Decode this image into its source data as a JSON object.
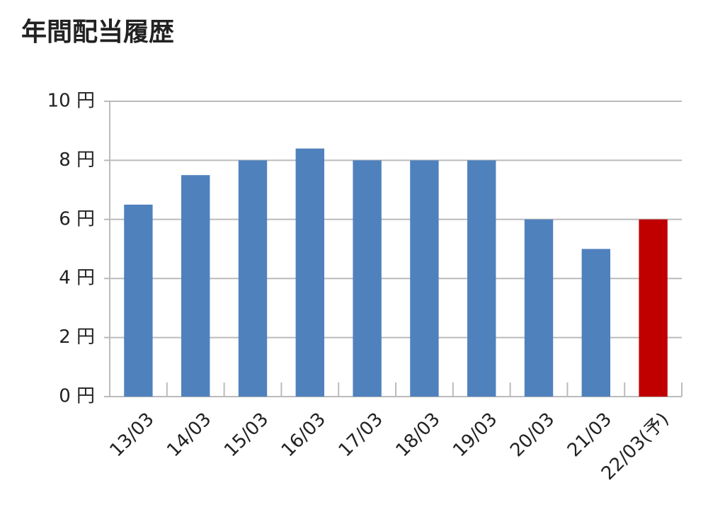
{
  "chart_data": {
    "type": "bar",
    "title": "年間配当履歴",
    "categories": [
      "13/03",
      "14/03",
      "15/03",
      "16/03",
      "17/03",
      "18/03",
      "19/03",
      "20/03",
      "21/03",
      "22/03(予)"
    ],
    "values": [
      6.5,
      7.5,
      8,
      8.4,
      8,
      8,
      8,
      6,
      5,
      6
    ],
    "colors": [
      "#4f81bd",
      "#4f81bd",
      "#4f81bd",
      "#4f81bd",
      "#4f81bd",
      "#4f81bd",
      "#4f81bd",
      "#4f81bd",
      "#4f81bd",
      "#c00000"
    ],
    "ylim": [
      0,
      10
    ],
    "yticks": [
      {
        "value": 0,
        "label": "0 円"
      },
      {
        "value": 2,
        "label": "2 円"
      },
      {
        "value": 4,
        "label": "4 円"
      },
      {
        "value": 6,
        "label": "6 円"
      },
      {
        "value": 8,
        "label": "8 円"
      },
      {
        "value": 10,
        "label": "10 円"
      }
    ],
    "grid": true
  }
}
